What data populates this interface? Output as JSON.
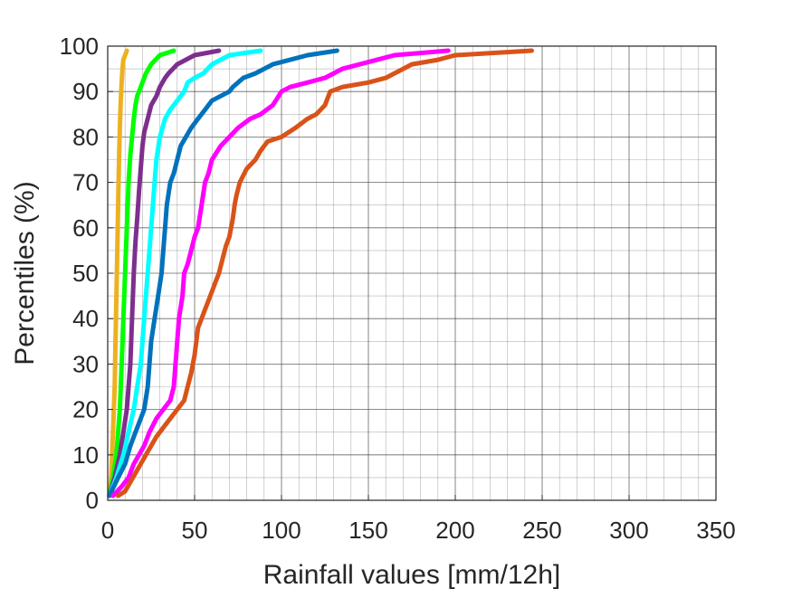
{
  "chart_data": {
    "type": "line",
    "title": "",
    "xlabel": "Rainfall values [mm/12h]",
    "ylabel": "Percentiles (%)",
    "xlim": [
      0,
      350
    ],
    "ylim": [
      0,
      100
    ],
    "xticks": [
      0,
      50,
      100,
      150,
      200,
      250,
      300,
      350
    ],
    "yticks": [
      0,
      10,
      20,
      30,
      40,
      50,
      60,
      70,
      80,
      90,
      100
    ],
    "grid": true,
    "legend": "none",
    "series": [
      {
        "color": "#EDB120",
        "points": [
          [
            1,
            1
          ],
          [
            2,
            5
          ],
          [
            3,
            15
          ],
          [
            4,
            25
          ],
          [
            4.5,
            35
          ],
          [
            5,
            45
          ],
          [
            5.5,
            55
          ],
          [
            6,
            65
          ],
          [
            6.5,
            75
          ],
          [
            7,
            82
          ],
          [
            7.5,
            88
          ],
          [
            8,
            92
          ],
          [
            8.5,
            95
          ],
          [
            9,
            97
          ],
          [
            10,
            98
          ],
          [
            11,
            99
          ]
        ]
      },
      {
        "color": "#00FF00",
        "points": [
          [
            1,
            1
          ],
          [
            3,
            5
          ],
          [
            5,
            10
          ],
          [
            6,
            15
          ],
          [
            7,
            20
          ],
          [
            8,
            30
          ],
          [
            9,
            40
          ],
          [
            10,
            50
          ],
          [
            11,
            60
          ],
          [
            12,
            70
          ],
          [
            13,
            76
          ],
          [
            14,
            80
          ],
          [
            15,
            84
          ],
          [
            16,
            87
          ],
          [
            17,
            89
          ],
          [
            18,
            90
          ],
          [
            20,
            92
          ],
          [
            22,
            94
          ],
          [
            25,
            96
          ],
          [
            30,
            98
          ],
          [
            38,
            99
          ]
        ]
      },
      {
        "color": "#7E2F8E",
        "points": [
          [
            1,
            1
          ],
          [
            4,
            5
          ],
          [
            7,
            10
          ],
          [
            9,
            15
          ],
          [
            11,
            20
          ],
          [
            13,
            30
          ],
          [
            14,
            40
          ],
          [
            15,
            50
          ],
          [
            16,
            57
          ],
          [
            17,
            62
          ],
          [
            18,
            68
          ],
          [
            19,
            73
          ],
          [
            20,
            78
          ],
          [
            21,
            81
          ],
          [
            23,
            84
          ],
          [
            25,
            87
          ],
          [
            28,
            89
          ],
          [
            30,
            91
          ],
          [
            33,
            93
          ],
          [
            35,
            94
          ],
          [
            40,
            96
          ],
          [
            50,
            98
          ],
          [
            64,
            99
          ]
        ]
      },
      {
        "color": "#00FFFF",
        "points": [
          [
            1,
            1
          ],
          [
            5,
            5
          ],
          [
            9,
            10
          ],
          [
            12,
            15
          ],
          [
            15,
            20
          ],
          [
            17,
            25
          ],
          [
            19,
            30
          ],
          [
            20,
            35
          ],
          [
            21,
            40
          ],
          [
            22,
            45
          ],
          [
            23,
            50
          ],
          [
            24,
            55
          ],
          [
            25,
            60
          ],
          [
            26,
            65
          ],
          [
            27,
            70
          ],
          [
            28,
            75
          ],
          [
            30,
            80
          ],
          [
            33,
            84
          ],
          [
            36,
            86
          ],
          [
            40,
            88
          ],
          [
            44,
            90
          ],
          [
            46,
            92
          ],
          [
            50,
            93
          ],
          [
            55,
            94
          ],
          [
            60,
            96
          ],
          [
            70,
            98
          ],
          [
            88,
            99
          ]
        ]
      },
      {
        "color": "#0072BD",
        "points": [
          [
            1,
            1
          ],
          [
            6,
            5
          ],
          [
            10,
            8
          ],
          [
            13,
            12
          ],
          [
            16,
            15
          ],
          [
            19,
            18
          ],
          [
            21,
            20
          ],
          [
            23,
            25
          ],
          [
            24,
            30
          ],
          [
            25,
            35
          ],
          [
            27,
            40
          ],
          [
            29,
            45
          ],
          [
            31,
            50
          ],
          [
            32,
            55
          ],
          [
            33,
            60
          ],
          [
            34,
            65
          ],
          [
            36,
            70
          ],
          [
            38,
            72
          ],
          [
            40,
            75
          ],
          [
            42,
            78
          ],
          [
            45,
            80
          ],
          [
            48,
            82
          ],
          [
            52,
            84
          ],
          [
            56,
            86
          ],
          [
            60,
            88
          ],
          [
            65,
            89
          ],
          [
            70,
            90
          ],
          [
            72,
            91
          ],
          [
            78,
            93
          ],
          [
            85,
            94
          ],
          [
            90,
            95
          ],
          [
            95,
            96
          ],
          [
            105,
            97
          ],
          [
            115,
            98
          ],
          [
            132,
            99
          ]
        ]
      },
      {
        "color": "#FF00FF",
        "points": [
          [
            3,
            1
          ],
          [
            8,
            3
          ],
          [
            12,
            5
          ],
          [
            15,
            8
          ],
          [
            18,
            10
          ],
          [
            21,
            12
          ],
          [
            24,
            15
          ],
          [
            28,
            18
          ],
          [
            32,
            20
          ],
          [
            36,
            22
          ],
          [
            38,
            25
          ],
          [
            39,
            30
          ],
          [
            40,
            35
          ],
          [
            41,
            40
          ],
          [
            43,
            45
          ],
          [
            44,
            50
          ],
          [
            46,
            52
          ],
          [
            48,
            55
          ],
          [
            50,
            58
          ],
          [
            52,
            60
          ],
          [
            54,
            65
          ],
          [
            56,
            70
          ],
          [
            58,
            72
          ],
          [
            60,
            75
          ],
          [
            65,
            78
          ],
          [
            70,
            80
          ],
          [
            75,
            82
          ],
          [
            82,
            84
          ],
          [
            88,
            85
          ],
          [
            95,
            87
          ],
          [
            100,
            90
          ],
          [
            105,
            91
          ],
          [
            115,
            92
          ],
          [
            125,
            93
          ],
          [
            135,
            95
          ],
          [
            145,
            96
          ],
          [
            155,
            97
          ],
          [
            165,
            98
          ],
          [
            196,
            99
          ]
        ]
      },
      {
        "color": "#D95319",
        "points": [
          [
            6,
            1
          ],
          [
            10,
            2
          ],
          [
            13,
            4
          ],
          [
            16,
            6
          ],
          [
            19,
            8
          ],
          [
            22,
            10
          ],
          [
            25,
            12
          ],
          [
            28,
            14
          ],
          [
            32,
            16
          ],
          [
            36,
            18
          ],
          [
            40,
            20
          ],
          [
            44,
            22
          ],
          [
            46,
            25
          ],
          [
            48,
            28
          ],
          [
            49,
            30
          ],
          [
            50,
            32
          ],
          [
            51,
            35
          ],
          [
            52,
            38
          ],
          [
            54,
            40
          ],
          [
            56,
            42
          ],
          [
            58,
            44
          ],
          [
            60,
            46
          ],
          [
            62,
            48
          ],
          [
            64,
            50
          ],
          [
            66,
            53
          ],
          [
            68,
            56
          ],
          [
            70,
            58
          ],
          [
            71,
            60
          ],
          [
            72,
            62
          ],
          [
            73,
            65
          ],
          [
            74,
            67
          ],
          [
            76,
            70
          ],
          [
            80,
            73
          ],
          [
            85,
            75
          ],
          [
            88,
            77
          ],
          [
            92,
            79
          ],
          [
            100,
            80
          ],
          [
            108,
            82
          ],
          [
            115,
            84
          ],
          [
            120,
            85
          ],
          [
            125,
            87
          ],
          [
            128,
            90
          ],
          [
            135,
            91
          ],
          [
            150,
            92
          ],
          [
            160,
            93
          ],
          [
            165,
            94
          ],
          [
            175,
            96
          ],
          [
            190,
            97
          ],
          [
            200,
            98
          ],
          [
            244,
            99
          ]
        ]
      }
    ]
  }
}
